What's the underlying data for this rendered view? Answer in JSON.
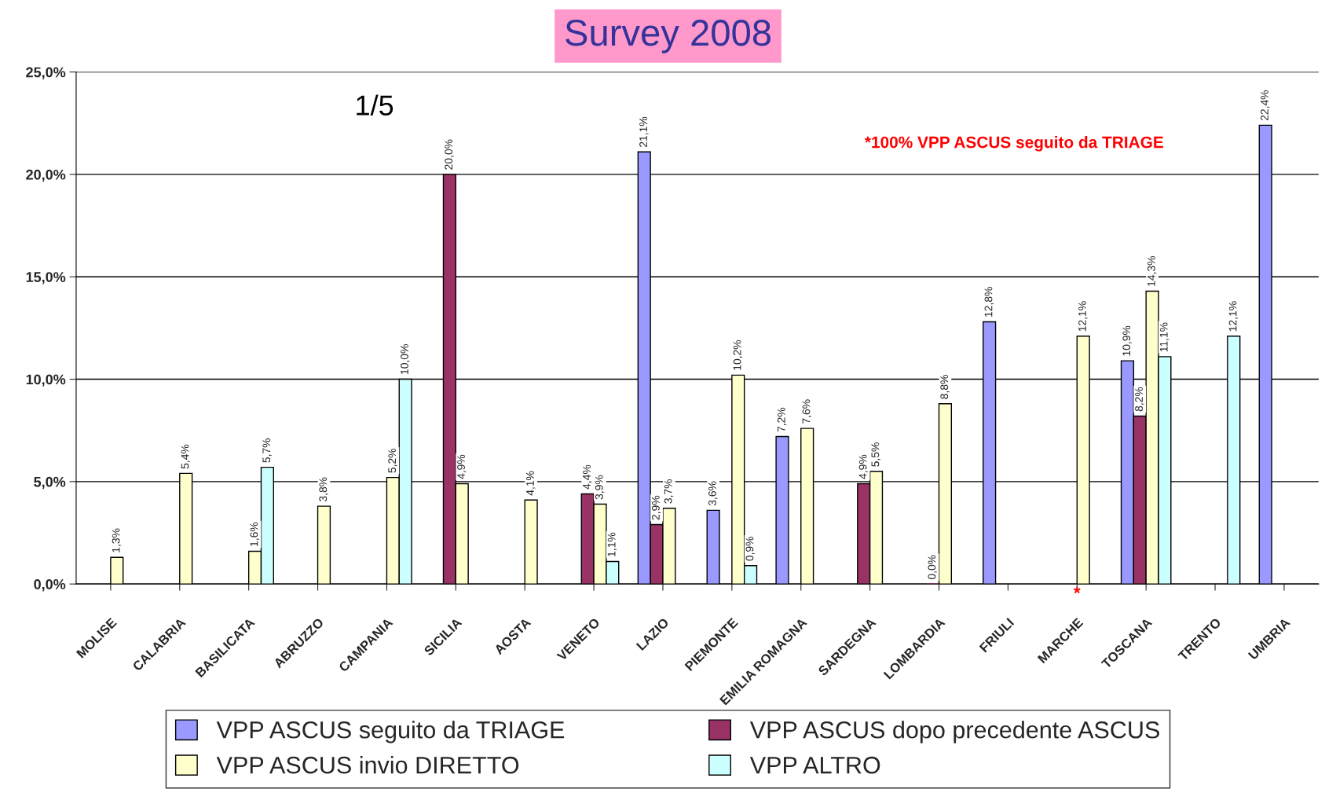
{
  "chart_data": {
    "type": "bar",
    "title": "Survey 2008",
    "annotations": [
      "1/5",
      "*100% VPP ASCUS seguito da TRIAGE",
      {
        "text": "*",
        "x": "MARCHE",
        "y": 0
      }
    ],
    "categories": [
      "MOLISE",
      "CALABRIA",
      "BASILICATA",
      "ABRUZZO",
      "CAMPANIA",
      "SICILIA",
      "AOSTA",
      "VENETO",
      "LAZIO",
      "PIEMONTE",
      "EMILIA ROMAGNA",
      "SARDEGNA",
      "LOMBARDIA",
      "FRIULI",
      "MARCHE",
      "TOSCANA",
      "TRENTO",
      "UMBRIA"
    ],
    "series": [
      {
        "name": "VPP ASCUS seguito da TRIAGE",
        "color": "#9999ff",
        "values": [
          null,
          null,
          null,
          null,
          null,
          null,
          null,
          null,
          21.1,
          3.6,
          7.2,
          null,
          null,
          12.8,
          null,
          10.9,
          null,
          22.4
        ],
        "value_labels": [
          null,
          null,
          null,
          null,
          null,
          null,
          null,
          null,
          "21,1%",
          "3,6%",
          "7,2%",
          null,
          null,
          "12,8%",
          null,
          "10,9%",
          null,
          "22,4%"
        ]
      },
      {
        "name": "VPP ASCUS dopo precedente ASCUS",
        "color": "#993366",
        "values": [
          null,
          null,
          null,
          null,
          null,
          20.0,
          null,
          4.4,
          2.9,
          null,
          null,
          4.9,
          0.0,
          null,
          null,
          8.2,
          null,
          null
        ],
        "value_labels": [
          null,
          null,
          null,
          null,
          null,
          "20,0%",
          null,
          "4,4%",
          "2,9%",
          null,
          null,
          "4,9%",
          "0,0%",
          null,
          null,
          "8,2%",
          null,
          null
        ]
      },
      {
        "name": "VPP ASCUS invio DIRETTO",
        "color": "#ffffcc",
        "values": [
          1.3,
          5.4,
          1.6,
          3.8,
          5.2,
          4.9,
          4.1,
          3.9,
          3.7,
          10.2,
          7.6,
          5.5,
          8.8,
          null,
          12.1,
          14.3,
          null,
          null
        ],
        "value_labels": [
          "1,3%",
          "5,4%",
          "1,6%",
          "3,8%",
          "5,2%",
          "4,9%",
          "4,1%",
          "3,9%",
          "3,7%",
          "10,2%",
          "7,6%",
          "5,5%",
          "8,8%",
          null,
          "12,1%",
          "14,3%",
          null,
          null
        ]
      },
      {
        "name": "VPP ALTRO",
        "color": "#ccffff",
        "values": [
          null,
          null,
          5.7,
          null,
          10.0,
          null,
          null,
          1.1,
          null,
          0.9,
          null,
          null,
          null,
          null,
          null,
          11.1,
          12.1,
          null
        ],
        "value_labels": [
          null,
          null,
          "5,7%",
          null,
          "10,0%",
          null,
          null,
          "1,1%",
          null,
          "0,9%",
          null,
          null,
          null,
          null,
          null,
          "11,1%",
          "12,1%",
          null
        ]
      }
    ],
    "ylim": [
      0,
      25
    ],
    "yticks": [
      {
        "value": 0,
        "label": "0,0%"
      },
      {
        "value": 5,
        "label": "5,0%"
      },
      {
        "value": 10,
        "label": "10,0%"
      },
      {
        "value": 15,
        "label": "15,0%"
      },
      {
        "value": 20,
        "label": "20,0%"
      },
      {
        "value": 25,
        "label": "25,0%"
      }
    ],
    "grid": "y",
    "legend": "bottom"
  }
}
